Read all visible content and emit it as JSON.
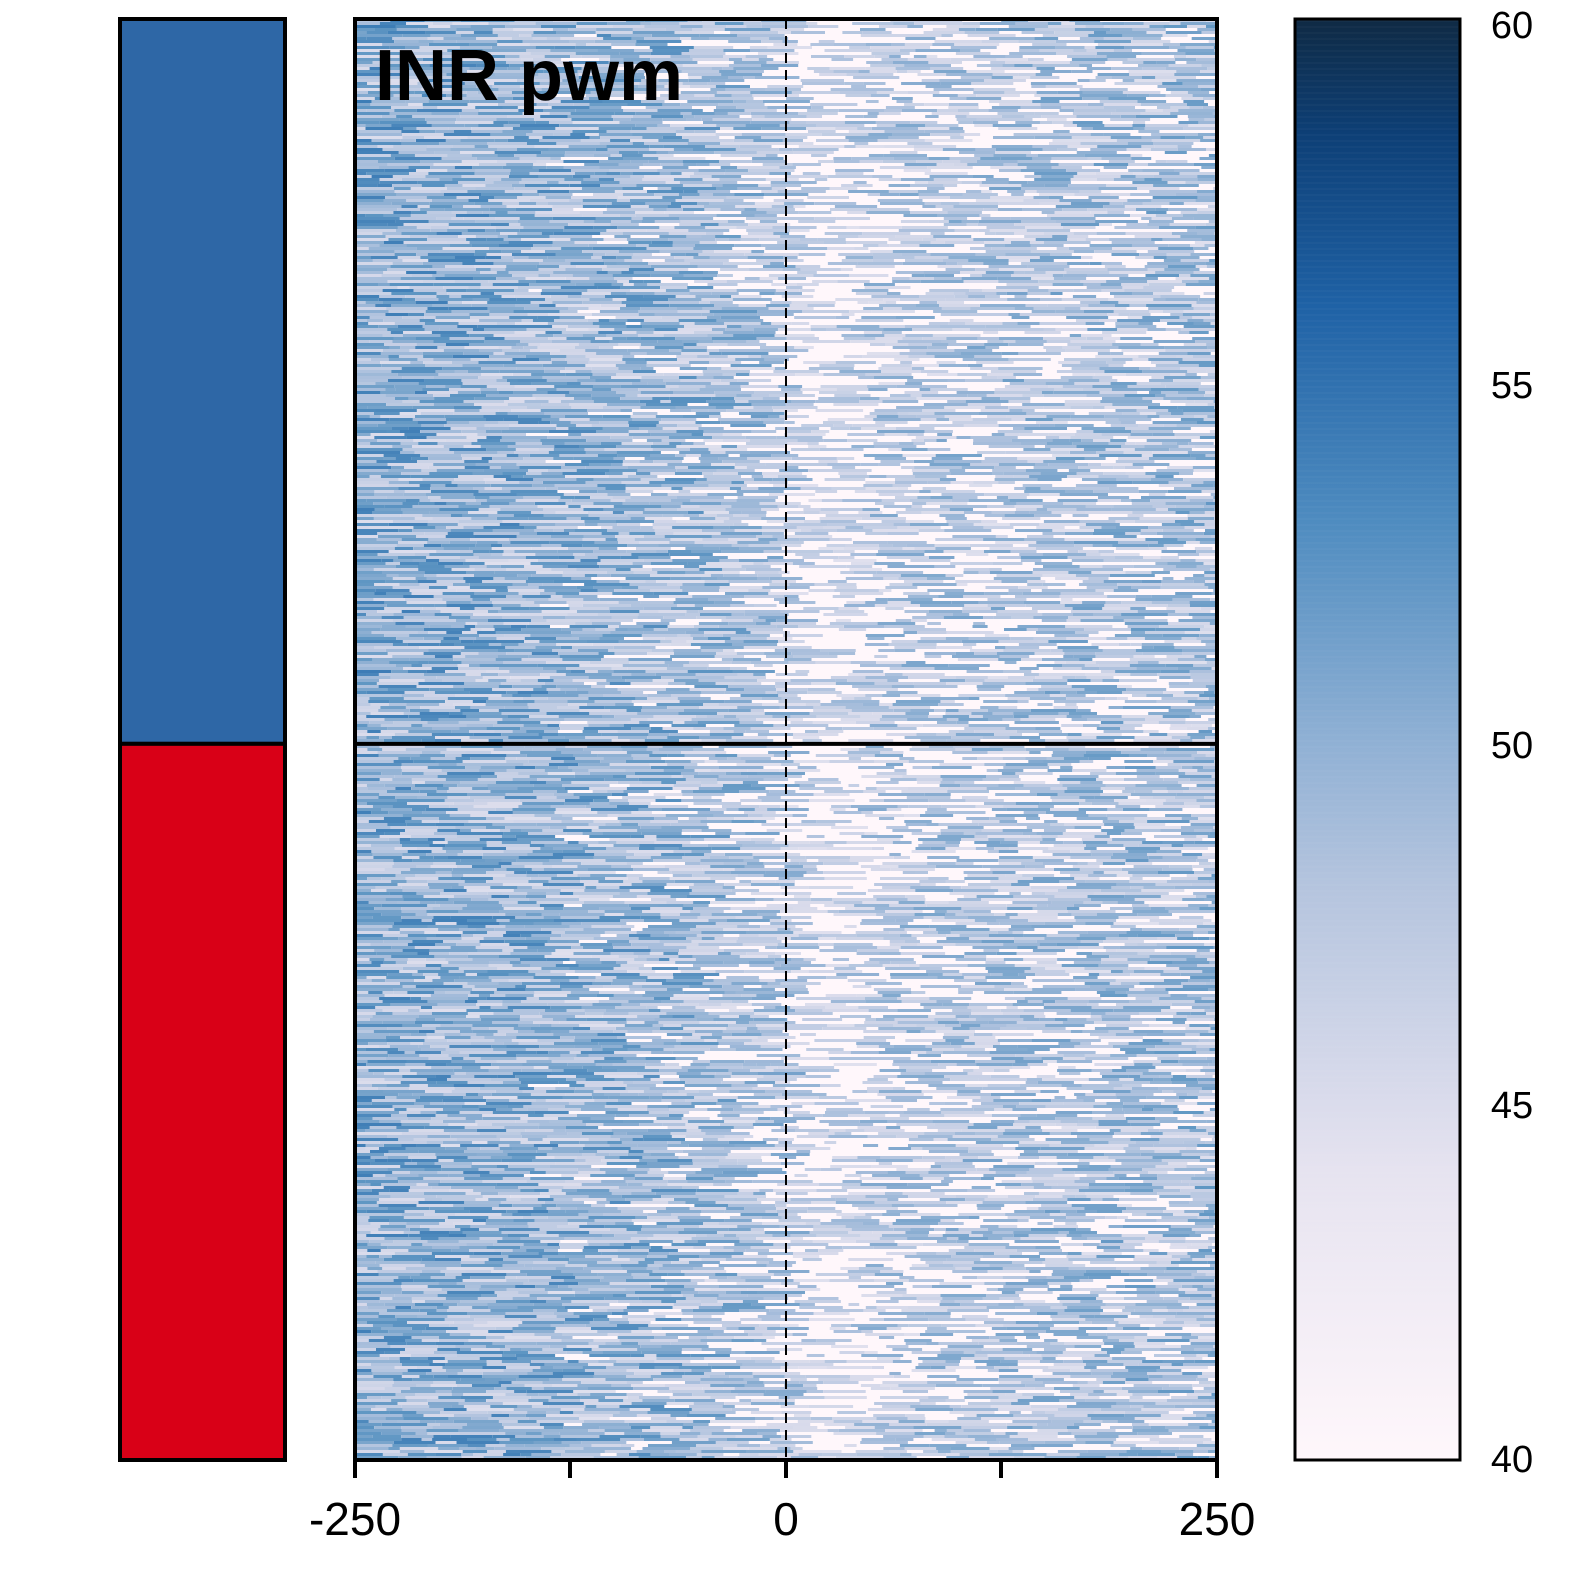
{
  "chart_data": {
    "type": "heatmap",
    "title": "INR pwm",
    "xlabel": "",
    "ylabel": "",
    "x_ticks": [
      "-250",
      "0",
      "250"
    ],
    "xlim": [
      -250,
      250
    ],
    "x_center_line": 0,
    "groups": [
      {
        "color": "#2e67a6",
        "fraction": 0.503
      },
      {
        "color": "#d90017",
        "fraction": 0.497
      }
    ],
    "colorbar": {
      "min": 40,
      "max": 60,
      "ticks": [
        "40",
        "45",
        "50",
        "55",
        "60"
      ],
      "colors": [
        "#fff7fb",
        "#d6d9ea",
        "#a6bddb",
        "#5f96c3",
        "#2369ac",
        "#0a4585",
        "#0f2a44"
      ]
    },
    "profile": {
      "description_values": [
        {
          "x": -250,
          "level": 47
        },
        {
          "x": -150,
          "level": 46.5
        },
        {
          "x": -50,
          "level": 45.5
        },
        {
          "x": -30,
          "level": 45
        },
        {
          "x": 0,
          "level": 44
        },
        {
          "x": 20,
          "level": 41
        },
        {
          "x": 50,
          "level": 43.5
        },
        {
          "x": 150,
          "level": 44.5
        },
        {
          "x": 250,
          "level": 45
        }
      ]
    }
  }
}
